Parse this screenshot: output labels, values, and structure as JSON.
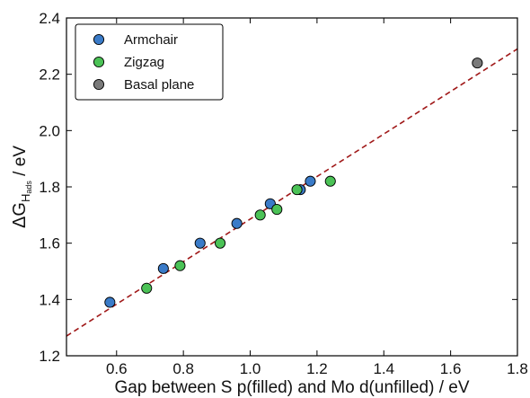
{
  "chart_data": {
    "type": "scatter",
    "xlabel": "Gap between S p(filled) and Mo d(unfilled) / eV",
    "ylabel_main": "ΔG",
    "ylabel_sub": "H",
    "ylabel_subsub": "ads",
    "ylabel_unit": " / eV",
    "xlim": [
      0.45,
      1.8
    ],
    "ylim": [
      1.2,
      2.4
    ],
    "xticks": [
      0.6,
      0.8,
      1.0,
      1.2,
      1.4,
      1.6,
      1.8
    ],
    "xtick_labels": [
      "0.6",
      "0.8",
      "1.0",
      "1.2",
      "1.4",
      "1.6",
      "1.8"
    ],
    "yticks": [
      1.2,
      1.4,
      1.6,
      1.8,
      2.0,
      2.2,
      2.4
    ],
    "ytick_labels": [
      "1.2",
      "1.4",
      "1.6",
      "1.8",
      "2.0",
      "2.2",
      "2.4"
    ],
    "grid": false,
    "legend_position": "top-left",
    "series": [
      {
        "name": "Armchair",
        "color": "#3a7bc8",
        "points": [
          [
            0.58,
            1.39
          ],
          [
            0.74,
            1.51
          ],
          [
            0.85,
            1.6
          ],
          [
            0.96,
            1.67
          ],
          [
            1.06,
            1.74
          ],
          [
            1.15,
            1.79
          ],
          [
            1.18,
            1.82
          ]
        ]
      },
      {
        "name": "Zigzag",
        "color": "#4bc256",
        "points": [
          [
            0.69,
            1.44
          ],
          [
            0.79,
            1.52
          ],
          [
            0.91,
            1.6
          ],
          [
            1.03,
            1.7
          ],
          [
            1.08,
            1.72
          ],
          [
            1.14,
            1.79
          ],
          [
            1.24,
            1.82
          ]
        ]
      },
      {
        "name": "Basal plane",
        "color": "#7a7a7a",
        "points": [
          [
            1.68,
            2.24
          ]
        ]
      }
    ],
    "fit_line": {
      "color": "#a01818",
      "style": "dashed",
      "points": [
        [
          0.45,
          1.27
        ],
        [
          1.8,
          2.29
        ]
      ]
    }
  }
}
